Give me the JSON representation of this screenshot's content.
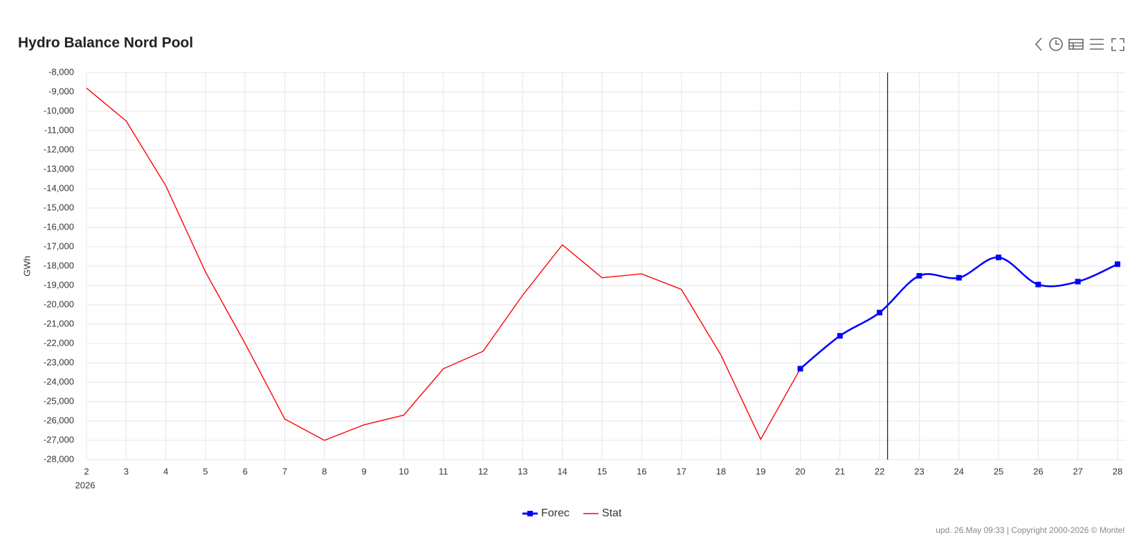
{
  "chart_data": {
    "type": "line",
    "title": "Hydro Balance Nord Pool",
    "y_label": "GWh",
    "x_year_label": "2026",
    "xlim": [
      2,
      28
    ],
    "xticks": [
      2,
      3,
      4,
      5,
      6,
      7,
      8,
      9,
      10,
      11,
      12,
      13,
      14,
      15,
      16,
      17,
      18,
      19,
      20,
      21,
      22,
      23,
      24,
      25,
      26,
      27,
      28
    ],
    "ylim": [
      -28000,
      -8000
    ],
    "yticks": [
      {
        "value": -8000,
        "label": "-8,000"
      },
      {
        "value": -9000,
        "label": "-9,000"
      },
      {
        "value": -10000,
        "label": "-10,000"
      },
      {
        "value": -11000,
        "label": "-11,000"
      },
      {
        "value": -12000,
        "label": "-12,000"
      },
      {
        "value": -13000,
        "label": "-13,000"
      },
      {
        "value": -14000,
        "label": "-14,000"
      },
      {
        "value": -15000,
        "label": "-15,000"
      },
      {
        "value": -16000,
        "label": "-16,000"
      },
      {
        "value": -17000,
        "label": "-17,000"
      },
      {
        "value": -18000,
        "label": "-18,000"
      },
      {
        "value": -19000,
        "label": "-19,000"
      },
      {
        "value": -20000,
        "label": "-20,000"
      },
      {
        "value": -21000,
        "label": "-21,000"
      },
      {
        "value": -22000,
        "label": "-22,000"
      },
      {
        "value": -23000,
        "label": "-23,000"
      },
      {
        "value": -24000,
        "label": "-24,000"
      },
      {
        "value": -25000,
        "label": "-25,000"
      },
      {
        "value": -26000,
        "label": "-26,000"
      },
      {
        "value": -27000,
        "label": "-27,000"
      },
      {
        "value": -28000,
        "label": "-28,000"
      }
    ],
    "grid": true,
    "plot_line_x": 22.2,
    "series": [
      {
        "name": "Forec",
        "color": "#0000ff",
        "marker": "square",
        "smooth": true,
        "x": [
          20,
          21,
          22,
          23,
          24,
          25,
          26,
          27,
          28
        ],
        "values": [
          -23300,
          -21600,
          -20400,
          -18500,
          -18600,
          -17550,
          -18950,
          -18800,
          -17900
        ]
      },
      {
        "name": "Stat",
        "color": "#ff0000",
        "x": [
          2,
          3,
          4,
          5,
          6,
          7,
          8,
          9,
          10,
          11,
          12,
          13,
          14,
          15,
          16,
          17,
          18,
          19,
          20
        ],
        "values": [
          -8800,
          -10500,
          -13850,
          -18300,
          -22000,
          -25900,
          -27000,
          -26200,
          -25700,
          -23300,
          -22400,
          -19500,
          -16900,
          -18600,
          -18400,
          -19200,
          -22600,
          -26950,
          -23300
        ]
      }
    ],
    "footer": "upd. 26.May 09:33 | Copyright 2000-2026 © Montel"
  }
}
